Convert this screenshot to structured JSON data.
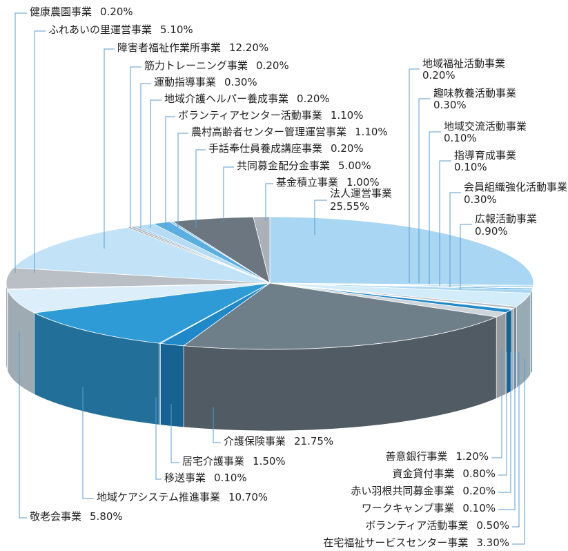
{
  "chart_data": {
    "type": "pie",
    "style": "3d",
    "title": "",
    "slices": [
      {
        "label": "法人運営事業",
        "percent": "25.55%",
        "value": 25.55,
        "color": "#a9d6f2"
      },
      {
        "label": "地域福祉活動事業",
        "percent": "0.20%",
        "value": 0.2,
        "color": "#8fc6ea"
      },
      {
        "label": "趣味教養活動事業",
        "percent": "0.30%",
        "value": 0.3,
        "color": "#5aaee0"
      },
      {
        "label": "地域交流活動事業",
        "percent": "0.10%",
        "value": 0.1,
        "color": "#8fc6ea"
      },
      {
        "label": "指導育成事業",
        "percent": "0.10%",
        "value": 0.1,
        "color": "#5aaee0"
      },
      {
        "label": "会員組織強化活動事業",
        "percent": "0.30%",
        "value": 0.3,
        "color": "#2d8fcb"
      },
      {
        "label": "広報活動事業",
        "percent": "0.90%",
        "value": 0.9,
        "color": "#a9d6f2"
      },
      {
        "label": "在宅福祉サービスセンター事業",
        "percent": "3.30%",
        "value": 3.3,
        "color": "#d3ecfa"
      },
      {
        "label": "ボランティア活動事業",
        "percent": "0.50%",
        "value": 0.5,
        "color": "#b5bcc2"
      },
      {
        "label": "ワークキャンプ事業",
        "percent": "0.10%",
        "value": 0.1,
        "color": "#6b7a86"
      },
      {
        "label": "赤い羽根共同募金事業",
        "percent": "0.20%",
        "value": 0.2,
        "color": "#8fc6ea"
      },
      {
        "label": "資金貸付事業",
        "percent": "0.80%",
        "value": 0.8,
        "color": "#1e88c8"
      },
      {
        "label": "善意銀行事業",
        "percent": "1.20%",
        "value": 1.2,
        "color": "#cfd6db"
      },
      {
        "label": "介護保険事業",
        "percent": "21.75%",
        "value": 21.75,
        "color": "#6f7f8a"
      },
      {
        "label": "居宅介護事業",
        "percent": "1.50%",
        "value": 1.5,
        "color": "#1e88c8"
      },
      {
        "label": "移送事業",
        "percent": "0.10%",
        "value": 0.1,
        "color": "#5aaee0"
      },
      {
        "label": "地域ケアシステム推進事業",
        "percent": "10.70%",
        "value": 10.7,
        "color": "#2f9bd6"
      },
      {
        "label": "敬老会事業",
        "percent": "5.80%",
        "value": 5.8,
        "color": "#dbeef9"
      },
      {
        "label": "健康農園事業",
        "percent": "0.20%",
        "value": 0.2,
        "color": "#9aa5ad"
      },
      {
        "label": "ふれあいの里運営事業",
        "percent": "5.10%",
        "value": 5.1,
        "color": "#b9bfc4"
      },
      {
        "label": "障害者福祉作業所事業",
        "percent": "12.20%",
        "value": 12.2,
        "color": "#c2e3f7"
      },
      {
        "label": "筋力トレーニング事業",
        "percent": "0.20%",
        "value": 0.2,
        "color": "#8b969e"
      },
      {
        "label": "運動指導事業",
        "percent": "0.30%",
        "value": 0.3,
        "color": "#b5bcc2"
      },
      {
        "label": "地域介護ヘルパー養成事業",
        "percent": "0.20%",
        "value": 0.2,
        "color": "#7bbde6"
      },
      {
        "label": "ボランティアセンター活動事業",
        "percent": "1.10%",
        "value": 1.1,
        "color": "#b5dcf4"
      },
      {
        "label": "農村高齢者センター管理運営事業",
        "percent": "1.10%",
        "value": 1.1,
        "color": "#5aaee0"
      },
      {
        "label": "手話奉仕員養成講座事業",
        "percent": "0.20%",
        "value": 0.2,
        "color": "#8fc6ea"
      },
      {
        "label": "共同募金配分金事業",
        "percent": "5.00%",
        "value": 5.0,
        "color": "#6b7680"
      },
      {
        "label": "基金積立事業",
        "percent": "1.00%",
        "value": 1.0,
        "color": "#aab2b8"
      }
    ]
  }
}
